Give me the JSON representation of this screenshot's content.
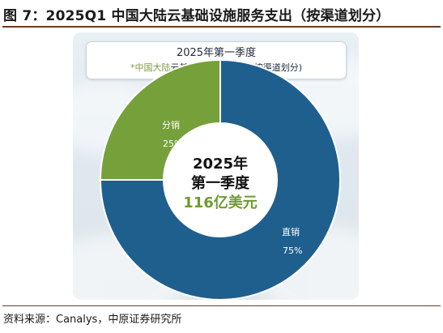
{
  "figure_title": "图 7：2025Q1 中国大陆云基础设施服务支出（按渠道划分）",
  "header": {
    "line1": "2025年第一季度",
    "line2_prefix": "*中国大陆",
    "line2_rest": "云基础服务设施支出(按渠道划分)"
  },
  "chart_data": {
    "type": "pie",
    "donut": true,
    "center_text": [
      "2025年",
      "第一季度",
      "116亿美元"
    ],
    "slices": [
      {
        "label": "直销",
        "percent_label": "75%",
        "value": 75,
        "color": "#1f5f8e"
      },
      {
        "label": "分销",
        "percent_label": "25%",
        "value": 25,
        "color": "#76a03a"
      }
    ],
    "colors": {
      "slice_border": "#ffffff",
      "center_text": "#111111",
      "center_amount": "#6f9a31"
    }
  },
  "source_text": "资料来源：Canalys，中原证券研究所"
}
